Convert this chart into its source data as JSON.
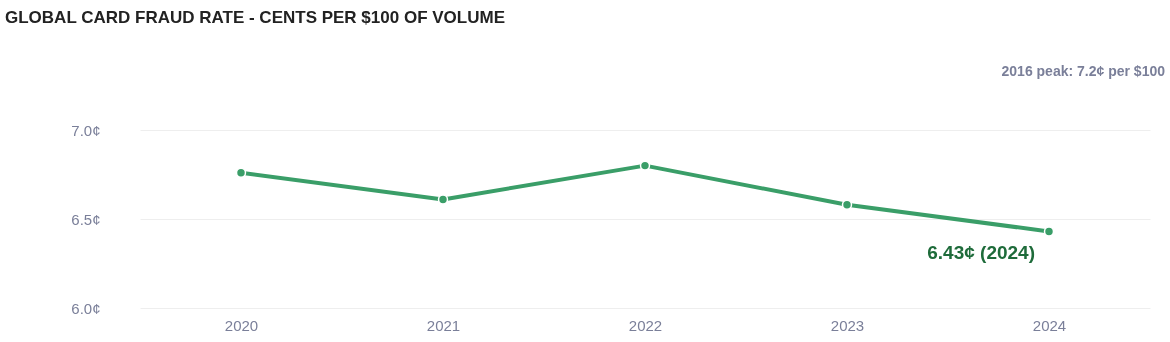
{
  "chart_data": {
    "type": "line",
    "title": "GLOBAL CARD FRAUD RATE - CENTS PER $100 OF VOLUME",
    "categories": [
      "2020",
      "2021",
      "2022",
      "2023",
      "2024"
    ],
    "series": [
      {
        "color": "#3a9e68",
        "values": [
          6.76,
          6.61,
          6.8,
          6.58,
          6.43
        ]
      }
    ],
    "ylim": [
      6.0,
      7.0
    ],
    "yticks": [
      {
        "value": 6.0,
        "label": "6.0¢"
      },
      {
        "value": 6.5,
        "label": "6.5¢"
      },
      {
        "value": 7.0,
        "label": "7.0¢"
      }
    ],
    "grid": "y",
    "marker": "circle",
    "line_style": "solid",
    "annotations": [
      "2016 peak: 7.2¢ per $100",
      {
        "text": "6.43¢ (2024)",
        "x": "2024",
        "y": 6.43
      }
    ]
  }
}
